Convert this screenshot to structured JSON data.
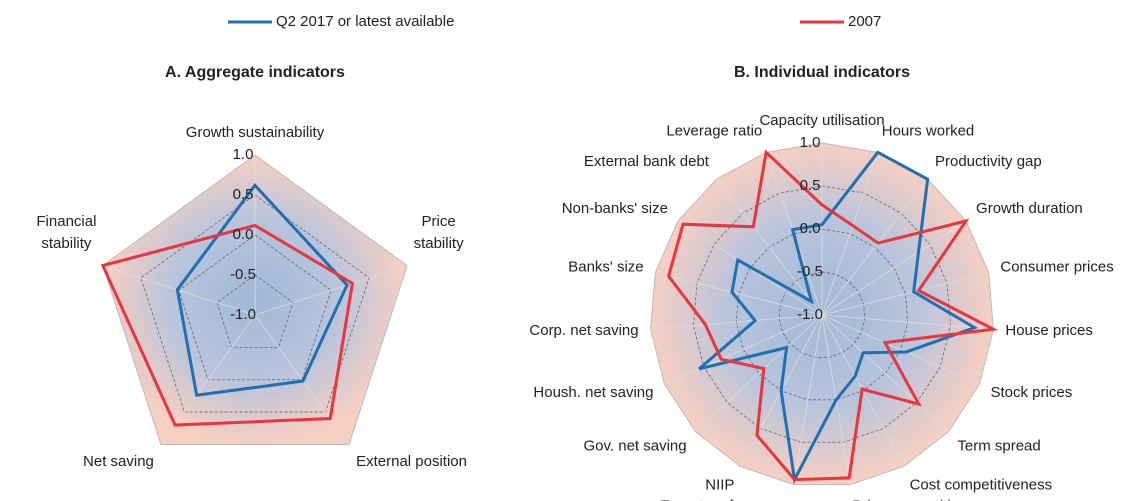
{
  "legend": [
    {
      "name": "Q2 2017 or latest available",
      "color": "#1f6fb2"
    },
    {
      "name": "2007",
      "color": "#e8363c"
    }
  ],
  "chart_data": [
    {
      "type": "radar",
      "title": "A. Aggregate indicators",
      "categories": [
        "Growth sustainability",
        "Price stability",
        "External position",
        "Net saving",
        "Financial stability"
      ],
      "series": [
        {
          "values": [
            0.62,
            0.21,
            0.02,
            0.24,
            0.02
          ]
        },
        {
          "values": [
            0.12,
            0.28,
            0.6,
            0.7,
            1.0
          ]
        }
      ],
      "rlim": [
        -1,
        1
      ],
      "rticks": [
        {
          "value": -1,
          "label": "-1.0"
        },
        {
          "value": -0.5,
          "label": "-0.5"
        },
        {
          "value": 0,
          "label": "0.0"
        },
        {
          "value": 0.5,
          "label": "0.5"
        },
        {
          "value": 1,
          "label": "1.0"
        }
      ]
    },
    {
      "type": "radar",
      "title": "B.  Individual indicators",
      "categories": [
        "Capacity utilisation",
        "Hours worked",
        "Productivity gap",
        "Growth  duration",
        "Consumer prices",
        "House prices",
        "Stock prices",
        "Term spread",
        "Cost competitiveness",
        "Price competitiveness",
        "Export performance",
        "NIIP",
        "Gov. net saving",
        "Housh. net saving",
        "Corp. net saving",
        "Banks' size",
        "Non-banks' size",
        "External bank debt",
        "Leverage ratio"
      ],
      "series": [
        {
          "values": [
            0.05,
            1.0,
            1.0,
            0.34,
            0.1,
            0.78,
            0.07,
            -0.35,
            -0.19,
            0.0,
            0.94,
            0.0,
            -0.44,
            0.56,
            -0.22,
            0.08,
            0.17,
            -0.8,
            0.05
          ]
        },
        {
          "values": [
            0.28,
            0.1,
            0.06,
            1.0,
            0.16,
            1.0,
            -0.2,
            0.53,
            -0.02,
            0.92,
            0.94,
            0.59,
            -0.08,
            0.28,
            0.36,
            0.84,
            0.93,
            0.3,
            1.0
          ]
        }
      ],
      "rlim": [
        -1,
        1
      ],
      "rticks": [
        {
          "value": -1,
          "label": "-1.0"
        },
        {
          "value": -0.5,
          "label": "-0.5"
        },
        {
          "value": 0,
          "label": "0.0"
        },
        {
          "value": 0.5,
          "label": "0.5"
        },
        {
          "value": 1,
          "label": "1.0"
        }
      ]
    }
  ]
}
